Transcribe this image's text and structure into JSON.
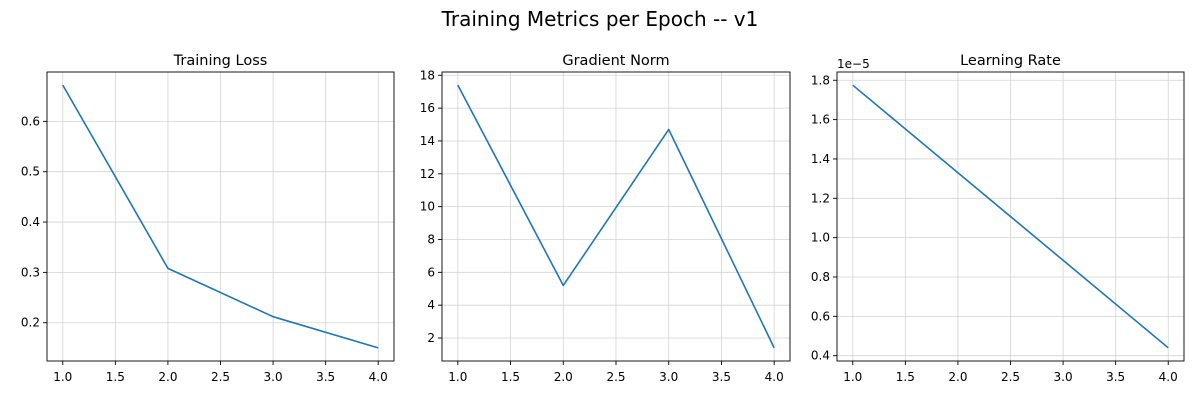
{
  "figure": {
    "title": "Training Metrics per Epoch -- v1"
  },
  "colors": {
    "line": "#1f77b4",
    "grid": "#d3d3d3",
    "axes": "#000000",
    "background": "#ffffff"
  },
  "chart_data": [
    {
      "type": "line",
      "title": "Training Loss",
      "xlabel": "",
      "ylabel": "",
      "grid": true,
      "x": [
        1,
        2,
        3,
        4
      ],
      "series": [
        {
          "values": [
            0.672,
            0.308,
            0.212,
            0.15
          ]
        }
      ],
      "xlim": [
        0.85,
        4.15
      ],
      "ylim": [
        0.124,
        0.698
      ],
      "xticks": [
        1.0,
        1.5,
        2.0,
        2.5,
        3.0,
        3.5,
        4.0
      ],
      "xtick_labels": [
        "1.0",
        "1.5",
        "2.0",
        "2.5",
        "3.0",
        "3.5",
        "4.0"
      ],
      "yticks": [
        0.2,
        0.3,
        0.4,
        0.5,
        0.6
      ],
      "ytick_labels": [
        "0.2",
        "0.3",
        "0.4",
        "0.5",
        "0.6"
      ],
      "offset_text": ""
    },
    {
      "type": "line",
      "title": "Gradient Norm",
      "xlabel": "",
      "ylabel": "",
      "grid": true,
      "x": [
        1,
        2,
        3,
        4
      ],
      "series": [
        {
          "values": [
            17.4,
            5.2,
            14.7,
            1.4
          ]
        }
      ],
      "xlim": [
        0.85,
        4.15
      ],
      "ylim": [
        0.6,
        18.2
      ],
      "xticks": [
        1.0,
        1.5,
        2.0,
        2.5,
        3.0,
        3.5,
        4.0
      ],
      "xtick_labels": [
        "1.0",
        "1.5",
        "2.0",
        "2.5",
        "3.0",
        "3.5",
        "4.0"
      ],
      "yticks": [
        2,
        4,
        6,
        8,
        10,
        12,
        14,
        16,
        18
      ],
      "ytick_labels": [
        "2",
        "4",
        "6",
        "8",
        "10",
        "12",
        "14",
        "16",
        "18"
      ],
      "offset_text": ""
    },
    {
      "type": "line",
      "title": "Learning Rate",
      "xlabel": "",
      "ylabel": "",
      "grid": true,
      "x": [
        1,
        2,
        3,
        4
      ],
      "series": [
        {
          "values": [
            1.775e-05,
            1.33e-05,
            8.85e-06,
            4.4e-06
          ]
        }
      ],
      "xlim": [
        0.85,
        4.15
      ],
      "ylim": [
        3.73e-06,
        1.842e-05
      ],
      "xticks": [
        1.0,
        1.5,
        2.0,
        2.5,
        3.0,
        3.5,
        4.0
      ],
      "xtick_labels": [
        "1.0",
        "1.5",
        "2.0",
        "2.5",
        "3.0",
        "3.5",
        "4.0"
      ],
      "yticks": [
        4e-06,
        6e-06,
        8e-06,
        1e-05,
        1.2e-05,
        1.4e-05,
        1.6e-05,
        1.8e-05
      ],
      "ytick_labels": [
        "0.4",
        "0.6",
        "0.8",
        "1.0",
        "1.2",
        "1.4",
        "1.6",
        "1.8"
      ],
      "offset_text": "1e−5"
    }
  ]
}
